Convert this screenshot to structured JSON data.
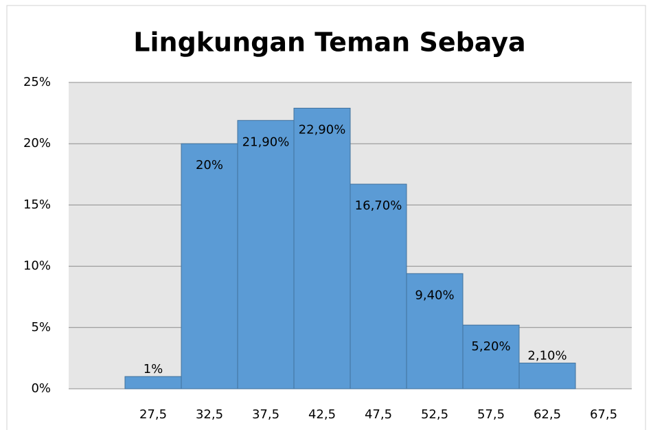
{
  "chart_data": {
    "type": "bar",
    "title": "Lingkungan Teman Sebaya",
    "categories": [
      null,
      "27,5",
      "32,5",
      "37,5",
      "42,5",
      "47,5",
      "52,5",
      "57,5",
      "62,5",
      "67,5"
    ],
    "values": [
      null,
      1,
      20,
      21.9,
      22.9,
      16.7,
      9.4,
      5.2,
      2.1,
      null
    ],
    "value_labels": [
      null,
      "1%",
      "20%",
      "21,90%",
      "22,90%",
      "16,70%",
      "9,40%",
      "5,20%",
      "2,10%",
      null
    ],
    "color": "#5b9bd5",
    "ylim": [
      0,
      25
    ],
    "yticks": [
      {
        "value": 0,
        "label": "0%"
      },
      {
        "value": 5,
        "label": "5%"
      },
      {
        "value": 10,
        "label": "10%"
      },
      {
        "value": 15,
        "label": "15%"
      },
      {
        "value": 20,
        "label": "20%"
      },
      {
        "value": 25,
        "label": "25%"
      }
    ],
    "grid": true
  }
}
